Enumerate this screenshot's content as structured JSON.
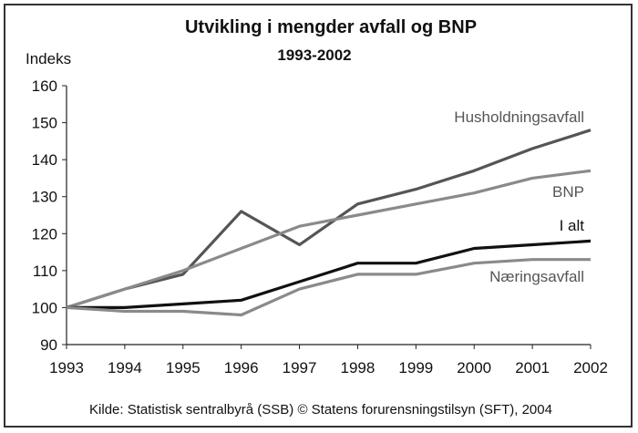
{
  "chart_data": {
    "type": "line",
    "title": "Utvikling i mengder avfall og BNP",
    "subtitle": "1993-2002",
    "ylabel": "Indeks",
    "xlabel": "",
    "x": [
      "1993",
      "1994",
      "1995",
      "1996",
      "1997",
      "1998",
      "1999",
      "2000",
      "2001",
      "2002"
    ],
    "ylim": [
      90,
      160
    ],
    "yticks": [
      90,
      100,
      110,
      120,
      130,
      140,
      150,
      160
    ],
    "grid": false,
    "series": [
      {
        "name": "Husholdningsavfall",
        "color": "#555555",
        "values": [
          100,
          105,
          109,
          126,
          117,
          128,
          132,
          137,
          143,
          148
        ]
      },
      {
        "name": "BNP",
        "color": "#8a8a8a",
        "values": [
          100,
          105,
          110,
          116,
          122,
          125,
          128,
          131,
          135,
          137
        ]
      },
      {
        "name": "I alt",
        "color": "#111111",
        "values": [
          100,
          100,
          101,
          102,
          107,
          112,
          112,
          116,
          117,
          118
        ]
      },
      {
        "name": "Næringsavfall",
        "color": "#8a8a8a",
        "values": [
          100,
          99,
          99,
          98,
          105,
          109,
          109,
          112,
          113,
          113
        ]
      }
    ],
    "source": "Kilde: Statistisk sentralbyrå (SSB) © Statens forurensningstilsyn (SFT), 2004"
  }
}
